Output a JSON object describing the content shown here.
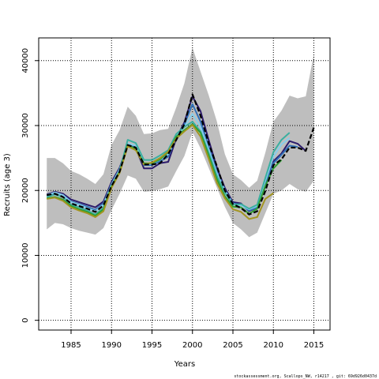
{
  "chart_data": {
    "type": "line",
    "title": "",
    "xlabel": "Years",
    "ylabel": "Recruits (age 3)",
    "xlim": [
      1981,
      2017
    ],
    "ylim": [
      -1500,
      43500
    ],
    "x_ticks": [
      1985,
      1990,
      1995,
      2000,
      2005,
      2010,
      2015
    ],
    "y_ticks": [
      0,
      10000,
      20000,
      30000,
      40000
    ],
    "grid": true,
    "legend": "none",
    "footer": "stockassessment.org, Scallops_NW, r14217 , git: 69d926d0437d",
    "band": {
      "color": "#bebebe",
      "x": [
        1982,
        1983,
        1984,
        1985,
        1986,
        1987,
        1988,
        1989,
        1990,
        1991,
        1992,
        1993,
        1994,
        1995,
        1996,
        1997,
        1998,
        1999,
        2000,
        2001,
        2002,
        2003,
        2004,
        2005,
        2006,
        2007,
        2008,
        2009,
        2010,
        2011,
        2012,
        2013,
        2014,
        2015
      ],
      "lower": [
        14000,
        15000,
        14800,
        14200,
        13800,
        13500,
        13200,
        14200,
        17000,
        19500,
        22300,
        21800,
        19800,
        19900,
        20200,
        20600,
        23000,
        25300,
        29000,
        26500,
        23500,
        20500,
        17500,
        15000,
        14000,
        12800,
        13500,
        16500,
        19500,
        20000,
        21000,
        20200,
        19800,
        21500
      ],
      "upper": [
        25000,
        25000,
        24200,
        23000,
        22500,
        21800,
        21000,
        22500,
        27000,
        29300,
        32900,
        31500,
        28700,
        28800,
        29300,
        29500,
        32800,
        36500,
        42000,
        38300,
        34700,
        30700,
        25600,
        22500,
        21600,
        20400,
        21500,
        25800,
        30600,
        32300,
        34600,
        34200,
        34500,
        41000
      ]
    },
    "series": [
      {
        "color": "#000000",
        "dashed": true,
        "x": [
          1982,
          1983,
          1984,
          1985,
          1986,
          1987,
          1988,
          1989,
          1990,
          1991,
          1992,
          1993,
          1994,
          1995,
          1996,
          1997,
          1998,
          1999,
          2000,
          2001,
          2002,
          2003,
          2004,
          2005,
          2006,
          2007,
          2008,
          2009,
          2010,
          2011,
          2012,
          2013,
          2014,
          2015
        ],
        "values": [
          19300,
          19500,
          19000,
          18000,
          17600,
          17200,
          16700,
          17700,
          20700,
          22900,
          27000,
          26600,
          24000,
          24000,
          24200,
          25600,
          27800,
          30200,
          34800,
          31500,
          27300,
          23800,
          20000,
          17900,
          17300,
          16300,
          16800,
          19900,
          23900,
          24800,
          26600,
          26600,
          26100,
          29700
        ]
      },
      {
        "color": "#2b1a6b",
        "x": [
          1982,
          1983,
          1984,
          1985,
          1986,
          1987,
          1988,
          1989,
          1990,
          1991,
          1992,
          1993,
          1994,
          1995,
          1996,
          1997,
          1998,
          1999,
          2000,
          2001,
          2002,
          2003,
          2004,
          2005,
          2006,
          2007,
          2008,
          2009,
          2010,
          2011,
          2012,
          2013,
          2014
        ],
        "values": [
          19400,
          19800,
          19500,
          18600,
          18200,
          17800,
          17400,
          18300,
          21300,
          23500,
          27000,
          26500,
          23400,
          23400,
          24200,
          24400,
          28000,
          30500,
          34500,
          32200,
          27800,
          23600,
          20400,
          18200,
          18000,
          16800,
          17400,
          20600,
          24500,
          25700,
          27600,
          27200,
          26100
        ]
      },
      {
        "color": "#2f6fb7",
        "x": [
          1982,
          1983,
          1984,
          1985,
          1986,
          1987,
          1988,
          1989,
          1990,
          1991,
          1992,
          1993,
          1994,
          1995,
          1996,
          1997,
          1998,
          1999,
          2000,
          2001,
          2002,
          2003,
          2004,
          2005,
          2006,
          2007,
          2008,
          2009,
          2010,
          2011,
          2012,
          2013
        ],
        "values": [
          19200,
          19600,
          19300,
          18300,
          17900,
          17500,
          17000,
          18000,
          21000,
          23300,
          27100,
          26800,
          23900,
          23900,
          24500,
          25200,
          28200,
          30200,
          33300,
          30600,
          26800,
          23000,
          20100,
          18000,
          17800,
          16900,
          17400,
          20900,
          24200,
          25500,
          26900,
          26700
        ]
      },
      {
        "color": "#87ceeb",
        "x": [
          1982,
          1983,
          1984,
          1985,
          1986,
          1987,
          1988,
          1989,
          1990,
          1991,
          1992,
          1993,
          1994,
          1995,
          1996,
          1997,
          1998,
          1999,
          2000,
          2001,
          2002,
          2003,
          2004,
          2005,
          2006,
          2007,
          2008,
          2009,
          2010,
          2011,
          2012
        ],
        "values": [
          19300,
          19700,
          19300,
          18200,
          17800,
          17300,
          16800,
          17800,
          20900,
          23200,
          27200,
          26900,
          24100,
          24100,
          24800,
          25600,
          28300,
          29800,
          31800,
          29800,
          26300,
          22700,
          20000,
          17900,
          17700,
          17100,
          17600,
          21500,
          25200,
          27100,
          28100
        ]
      },
      {
        "color": "#3aafa0",
        "x": [
          1982,
          1983,
          1984,
          1985,
          1986,
          1987,
          1988,
          1989,
          1990,
          1991,
          1992,
          1993,
          1994,
          1995,
          1996,
          1997,
          1998,
          1999,
          2000,
          2001,
          2002,
          2003,
          2004,
          2005,
          2006,
          2007,
          2008,
          2009,
          2010,
          2011,
          2012
        ],
        "values": [
          19000,
          19400,
          19000,
          17800,
          17400,
          16900,
          16300,
          17300,
          20700,
          23000,
          27800,
          27300,
          24700,
          24700,
          25400,
          26200,
          28700,
          29800,
          30600,
          29100,
          25800,
          22300,
          19700,
          17800,
          17900,
          17200,
          17800,
          21900,
          25900,
          27800,
          28900
        ]
      },
      {
        "color": "#2e9f30",
        "x": [
          1982,
          1983,
          1984,
          1985,
          1986,
          1987,
          1988,
          1989,
          1990,
          1991,
          1992,
          1993,
          1994,
          1995,
          1996,
          1997,
          1998,
          1999,
          2000,
          2001,
          2002,
          2003,
          2004,
          2005,
          2006,
          2007,
          2008,
          2009,
          2010,
          2011
        ],
        "values": [
          18800,
          19000,
          18600,
          17600,
          17100,
          16700,
          16100,
          17100,
          20600,
          22900,
          27000,
          26400,
          24200,
          24200,
          24800,
          25900,
          28300,
          29300,
          30200,
          28900,
          25400,
          21800,
          19100,
          17500,
          17400,
          16400,
          17200,
          20700,
          23400,
          24700
        ]
      },
      {
        "color": "#a39520",
        "x": [
          1982,
          1983,
          1984,
          1985,
          1986,
          1987,
          1988,
          1989,
          1990,
          1991,
          1992,
          1993,
          1994,
          1995,
          1996,
          1997,
          1998,
          1999,
          2000,
          2001,
          2002,
          2003,
          2004,
          2005,
          2006,
          2007,
          2008,
          2009,
          2010
        ],
        "values": [
          18700,
          18900,
          18400,
          17400,
          16900,
          16500,
          15900,
          16800,
          20400,
          22700,
          26800,
          26200,
          24000,
          24300,
          25000,
          26000,
          28000,
          29100,
          30100,
          28300,
          24900,
          21200,
          18800,
          17100,
          16700,
          15600,
          15900,
          18700,
          19600
        ]
      }
    ]
  }
}
